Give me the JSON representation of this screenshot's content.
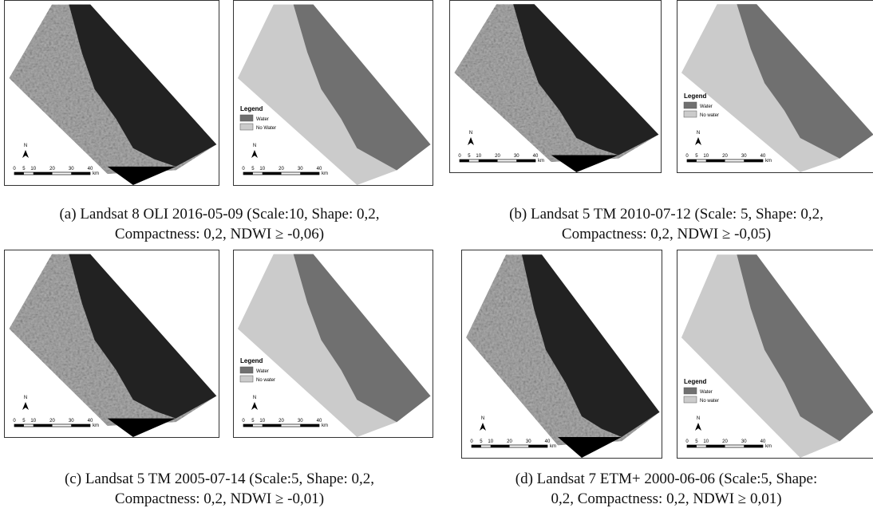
{
  "panels": [
    {
      "caption": [
        "(a) Landsat 8 OLI 2016-05-09 (Scale:10, Shape: 0,2,",
        "Compactness: 0,2, NDWI ≥ -0,06)"
      ],
      "image": {
        "north": "N",
        "scale": [
          "0",
          "5",
          "10",
          "20",
          "30",
          "40"
        ],
        "unit": "km"
      },
      "map": {
        "legend_title": "Legend",
        "legend": [
          "Water",
          "No Water"
        ],
        "north": "N",
        "scale": [
          "0",
          "5",
          "10",
          "20",
          "30",
          "40"
        ],
        "unit": "km"
      }
    },
    {
      "caption": [
        "(b) Landsat 5 TM 2010-07-12 (Scale: 5, Shape: 0,2,",
        "Compactness: 0,2, NDWI ≥ -0,05)"
      ],
      "image": {
        "north": "N",
        "scale": [
          "0",
          "5",
          "10",
          "20",
          "30",
          "40"
        ],
        "unit": "km"
      },
      "map": {
        "legend_title": "Legend",
        "legend": [
          "Water",
          "No water"
        ],
        "north": "N",
        "scale": [
          "0",
          "5",
          "10",
          "20",
          "30",
          "40"
        ],
        "unit": "km"
      }
    },
    {
      "caption": [
        "(c) Landsat 5 TM 2005-07-14 (Scale:5, Shape: 0,2,",
        "Compactness: 0,2, NDWI ≥ -0,01)"
      ],
      "image": {
        "north": "N",
        "scale": [
          "0",
          "5",
          "10",
          "20",
          "30",
          "40"
        ],
        "unit": "km"
      },
      "map": {
        "legend_title": "Legend",
        "legend": [
          "Water",
          "No water"
        ],
        "north": "N",
        "scale": [
          "0",
          "5",
          "10",
          "20",
          "30",
          "40"
        ],
        "unit": "km"
      }
    },
    {
      "caption": [
        "(d) Landsat 7 ETM+ 2000-06-06 (Scale:5, Shape:",
        "0,2, Compactness: 0,2, NDWI ≥ 0,01)"
      ],
      "image": {
        "north": "N",
        "scale": [
          "0",
          "5",
          "10",
          "20",
          "30",
          "40"
        ],
        "unit": "km"
      },
      "map": {
        "legend_title": "Legend",
        "legend": [
          "Water",
          "No water"
        ],
        "north": "N",
        "scale": [
          "0",
          "5",
          "10",
          "20",
          "30",
          "40"
        ],
        "unit": "km"
      }
    }
  ]
}
